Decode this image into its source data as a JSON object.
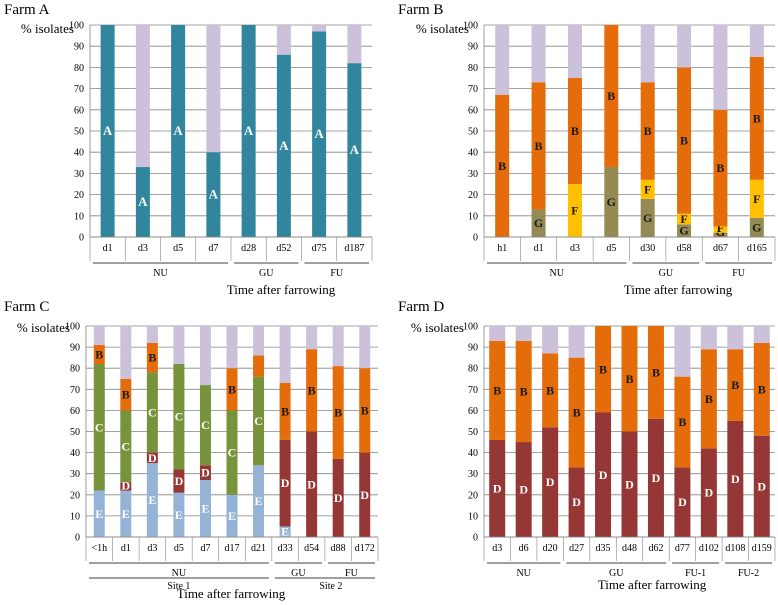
{
  "colors": {
    "A": "#31859c",
    "B": "#e46c0a",
    "C": "#77933c",
    "D": "#953735",
    "E": "#95b3d7",
    "F": "#ffc000",
    "G": "#948a54",
    "other": "#ccc1da"
  },
  "chart_data": [
    {
      "type": "bar",
      "stacked": true,
      "title": "Farm A",
      "ylabel": "% isolates",
      "xlabel": "Time after farrowing",
      "ylim": [
        0,
        100
      ],
      "yticks": [
        0,
        10,
        20,
        30,
        40,
        50,
        60,
        70,
        80,
        90,
        100
      ],
      "categories": [
        "d1",
        "d3",
        "d5",
        "d7",
        "d28",
        "d52",
        "d75",
        "d187"
      ],
      "groups": [
        {
          "label": "NU",
          "from": 0,
          "to": 3
        },
        {
          "label": "GU",
          "from": 4,
          "to": 5
        },
        {
          "label": "FU",
          "from": 6,
          "to": 7
        }
      ],
      "series": [
        {
          "name": "A",
          "values": [
            100,
            33,
            100,
            40,
            100,
            86,
            97,
            82
          ],
          "labels": [
            "A",
            "A",
            "A",
            "A",
            "A",
            "A",
            "A",
            "A"
          ]
        },
        {
          "name": "other",
          "values": [
            0,
            67,
            0,
            60,
            0,
            14,
            3,
            18
          ]
        }
      ]
    },
    {
      "type": "bar",
      "stacked": true,
      "title": "Farm B",
      "ylabel": "% isolates",
      "xlabel": "Time after farrowing",
      "ylim": [
        0,
        100
      ],
      "yticks": [
        0,
        10,
        20,
        30,
        40,
        50,
        60,
        70,
        80,
        90,
        100
      ],
      "categories": [
        "h1",
        "d1",
        "d3",
        "d5",
        "d30",
        "d58",
        "d67",
        "d165"
      ],
      "groups": [
        {
          "label": "NU",
          "from": 0,
          "to": 3
        },
        {
          "label": "GU",
          "from": 4,
          "to": 5
        },
        {
          "label": "FU",
          "from": 6,
          "to": 7
        }
      ],
      "series": [
        {
          "name": "G",
          "values": [
            0,
            13,
            0,
            33,
            18,
            6,
            2,
            9
          ],
          "labels": [
            "",
            "G",
            "",
            "G",
            "G",
            "G",
            "G",
            "G"
          ]
        },
        {
          "name": "F",
          "values": [
            0,
            0,
            25,
            0,
            9,
            5,
            3,
            18
          ],
          "labels": [
            "",
            "",
            "F",
            "",
            "F",
            "F",
            "F",
            "F"
          ]
        },
        {
          "name": "B",
          "values": [
            67,
            60,
            50,
            67,
            46,
            69,
            55,
            58
          ],
          "labels": [
            "B",
            "B",
            "B",
            "B",
            "B",
            "B",
            "B",
            "B"
          ]
        },
        {
          "name": "other",
          "values": [
            33,
            27,
            25,
            0,
            27,
            20,
            40,
            15
          ]
        }
      ]
    },
    {
      "type": "bar",
      "stacked": true,
      "title": "Farm C",
      "ylabel": "% isolates",
      "xlabel": "Time after farrowing",
      "ylim": [
        0,
        100
      ],
      "yticks": [
        0,
        10,
        20,
        30,
        40,
        50,
        60,
        70,
        80,
        90,
        100
      ],
      "categories": [
        "<1h",
        "d1",
        "d3",
        "d5",
        "d7",
        "d17",
        "d21",
        "d33",
        "d54",
        "d88",
        "d172"
      ],
      "groups": [
        {
          "label": "NU",
          "from": 0,
          "to": 6
        },
        {
          "label": "GU",
          "from": 7,
          "to": 8
        },
        {
          "label": "FU",
          "from": 9,
          "to": 10
        }
      ],
      "groups2": [
        {
          "label": "Site 1",
          "from": 0,
          "to": 6
        },
        {
          "label": "Site 2",
          "from": 7,
          "to": 10
        }
      ],
      "series": [
        {
          "name": "E",
          "values": [
            22,
            22,
            35,
            21,
            27,
            20,
            34,
            5,
            0,
            0,
            0
          ],
          "labels": [
            "E",
            "E",
            "E",
            "E",
            "E",
            "E",
            "E",
            "E",
            "",
            "",
            ""
          ]
        },
        {
          "name": "D",
          "values": [
            0,
            4,
            5,
            11,
            7,
            0,
            0,
            41,
            50,
            37,
            40
          ],
          "labels": [
            "",
            "D",
            "D",
            "D",
            "D",
            "",
            "",
            "D",
            "D",
            "D",
            "D"
          ]
        },
        {
          "name": "C",
          "values": [
            60,
            34,
            38,
            50,
            38,
            40,
            42,
            0,
            0,
            0,
            0
          ],
          "labels": [
            "C",
            "C",
            "C",
            "C",
            "C",
            "C",
            "C",
            "",
            "",
            "",
            ""
          ]
        },
        {
          "name": "B",
          "values": [
            9,
            15,
            14,
            0,
            0,
            20,
            10,
            27,
            39,
            44,
            40
          ],
          "labels": [
            "B",
            "B",
            "B",
            "",
            "",
            "B",
            "",
            "B",
            "B",
            "B",
            "B"
          ]
        },
        {
          "name": "other",
          "values": [
            9,
            25,
            8,
            18,
            28,
            20,
            14,
            27,
            11,
            19,
            20
          ]
        }
      ]
    },
    {
      "type": "bar",
      "stacked": true,
      "title": "Farm D",
      "ylabel": "% isolates",
      "xlabel": "Time after farrowing",
      "ylim": [
        0,
        100
      ],
      "yticks": [
        0,
        10,
        20,
        30,
        40,
        50,
        60,
        70,
        80,
        90,
        100
      ],
      "categories": [
        "d3",
        "d6",
        "d20",
        "d27",
        "d35",
        "d48",
        "d62",
        "d77",
        "d102",
        "d108",
        "d159"
      ],
      "groups": [
        {
          "label": "NU",
          "from": 0,
          "to": 2
        },
        {
          "label": "GU",
          "from": 3,
          "to": 6
        },
        {
          "label": "FU-1",
          "from": 7,
          "to": 8
        },
        {
          "label": "FU-2",
          "from": 9,
          "to": 10
        }
      ],
      "series": [
        {
          "name": "D",
          "values": [
            46,
            45,
            52,
            33,
            59,
            50,
            56,
            33,
            42,
            55,
            48
          ],
          "labels": [
            "D",
            "D",
            "D",
            "D",
            "D",
            "D",
            "D",
            "D",
            "D",
            "D",
            "D"
          ]
        },
        {
          "name": "B",
          "values": [
            47,
            48,
            35,
            52,
            41,
            50,
            44,
            43,
            47,
            34,
            44
          ],
          "labels": [
            "B",
            "B",
            "B",
            "B",
            "B",
            "B",
            "B",
            "B",
            "B",
            "B",
            "B"
          ]
        },
        {
          "name": "other",
          "values": [
            7,
            7,
            13,
            15,
            0,
            0,
            0,
            24,
            11,
            11,
            8
          ]
        }
      ]
    }
  ]
}
